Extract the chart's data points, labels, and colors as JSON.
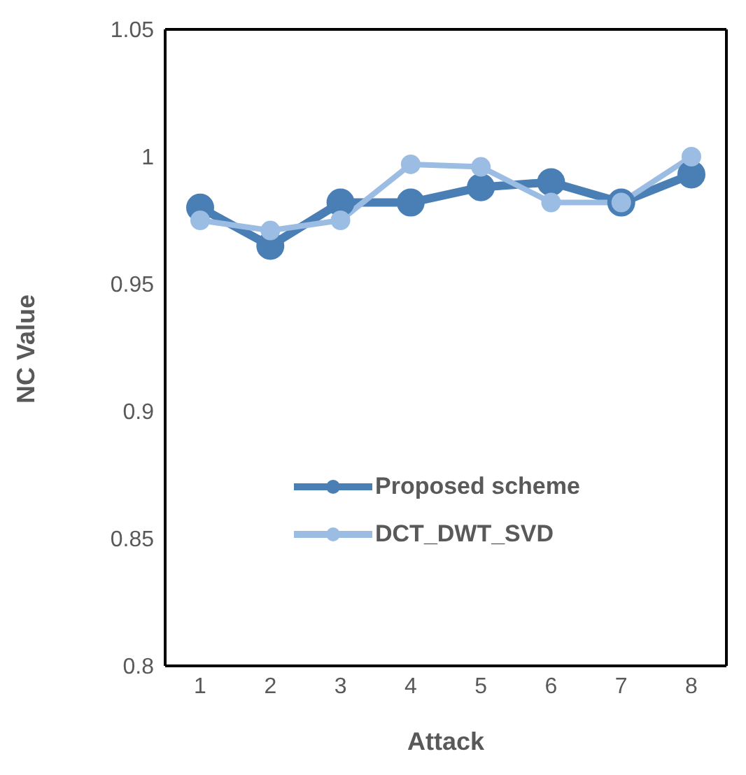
{
  "chart_data": {
    "type": "line",
    "xlabel": "Attack",
    "ylabel": "NC Value",
    "categories": [
      "1",
      "2",
      "3",
      "4",
      "5",
      "6",
      "7",
      "8"
    ],
    "series": [
      {
        "name": "Proposed scheme",
        "color": "#4a7fb5",
        "values": [
          0.98,
          0.965,
          0.982,
          0.982,
          0.988,
          0.99,
          0.982,
          0.993
        ]
      },
      {
        "name": "DCT_DWT_SVD",
        "color": "#9cbde3",
        "values": [
          0.975,
          0.971,
          0.975,
          0.997,
          0.996,
          0.982,
          0.982,
          1.0
        ]
      }
    ],
    "ylim": [
      0.8,
      1.05
    ],
    "yticks": [
      0.8,
      0.85,
      0.9,
      0.95,
      1,
      1.05
    ],
    "grid": false,
    "legend": "bottom",
    "marker": "circle",
    "line_style": "solid"
  }
}
